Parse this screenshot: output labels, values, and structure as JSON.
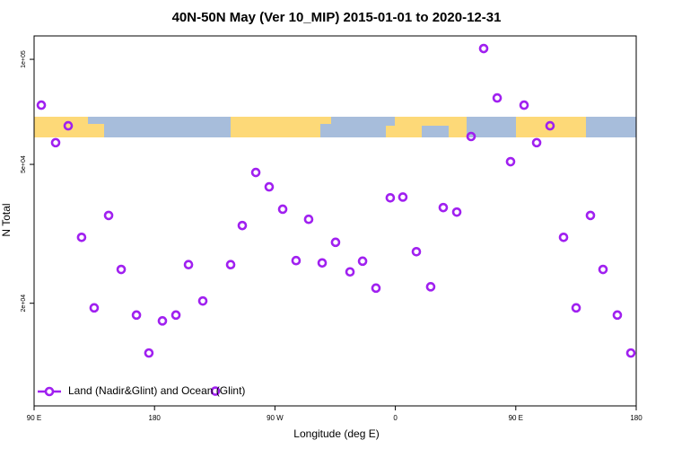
{
  "chart_data": {
    "type": "scatter",
    "title": "40N-50N May (Ver 10_MIP)   2015-01-01 to 2020-12-31",
    "x_label": "Longitude (deg E)",
    "y_label": "N Total",
    "log_y": true,
    "legend": "bottomleft",
    "xlim": [
      90,
      540
    ],
    "xticks": [
      {
        "value": 90,
        "label": "90 E"
      },
      180,
      {
        "value": 270,
        "label": "90 W"
      },
      {
        "value": 360,
        "label": "0"
      },
      {
        "value": 450,
        "label": "90 E"
      },
      {
        "value": 540,
        "label": "180"
      }
    ],
    "ylim": [
      10160,
      116700
    ],
    "yticks": [
      {
        "value": 100000,
        "label": "1e+05"
      },
      {
        "value": 50000,
        "label": "5e+04"
      },
      {
        "value": 20000,
        "label": "2e+04"
      }
    ],
    "series": [
      {
        "name": "Land (Nadir&Glint) and Ocean (Glint)",
        "color": "#a020f0",
        "x": [
          95.4,
          106.1,
          115.5,
          125.5,
          134.9,
          145.7,
          155.1,
          166.5,
          175.8,
          185.9,
          196.0,
          205.4,
          216.1,
          225.5,
          236.9,
          245.6,
          255.7,
          265.7,
          275.8,
          285.8,
          295.2,
          305.3,
          315.3,
          326.1,
          335.5,
          345.5,
          356.2,
          365.6,
          375.7,
          386.4,
          395.8,
          405.9,
          416.6,
          426.0,
          436.1,
          446.1,
          456.2,
          465.6,
          475.6,
          485.7,
          495.1,
          505.8,
          515.2,
          525.9,
          536.0
        ],
        "values": [
          73900,
          57700,
          64500,
          30900,
          19400,
          35700,
          25000,
          18500,
          14400,
          17800,
          18500,
          25800,
          20300,
          11200,
          25800,
          33400,
          47400,
          43100,
          37200,
          26500,
          34800,
          26100,
          29900,
          24600,
          26400,
          22100,
          40100,
          40300,
          28100,
          22300,
          37600,
          36500,
          60100,
          107400,
          77500,
          50900,
          73900,
          57700,
          64500,
          30900,
          19400,
          35700,
          25000,
          18500,
          14400
        ]
      }
    ]
  }
}
